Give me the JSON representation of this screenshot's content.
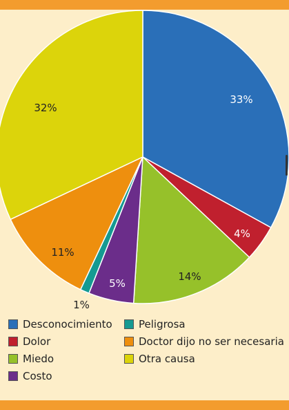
{
  "chart_data": {
    "type": "pie",
    "slices": [
      {
        "label": "Desconocimiento",
        "value": 33,
        "value_label": "33%",
        "color": "#2a6fb8"
      },
      {
        "label": "Dolor",
        "value": 4,
        "value_label": "4%",
        "color": "#c0202e"
      },
      {
        "label": "Miedo",
        "value": 14,
        "value_label": "14%",
        "color": "#96c12a"
      },
      {
        "label": "Costo",
        "value": 5,
        "value_label": "5%",
        "color": "#6b2d8a"
      },
      {
        "label": "Peligrosa",
        "value": 1,
        "value_label": "1%",
        "color": "#159a92"
      },
      {
        "label": "Doctor dijo no ser necesaria",
        "value": 11,
        "value_label": "11%",
        "color": "#ee8f0e"
      },
      {
        "label": "Otra causa",
        "value": 32,
        "value_label": "32%",
        "color": "#dcd40b"
      }
    ],
    "legend": [
      {
        "label": "Desconocimiento",
        "color": "#2a6fb8"
      },
      {
        "label": "Peligrosa",
        "color": "#159a92"
      },
      {
        "label": "Dolor",
        "color": "#c0202e"
      },
      {
        "label": "Doctor dijo no ser necesaria",
        "color": "#ee8f0e"
      },
      {
        "label": "Miedo",
        "color": "#96c12a"
      },
      {
        "label": "Otra causa",
        "color": "#dcd40b"
      },
      {
        "label": "Costo",
        "color": "#6b2d8a"
      }
    ],
    "legend_position": "bottom"
  }
}
